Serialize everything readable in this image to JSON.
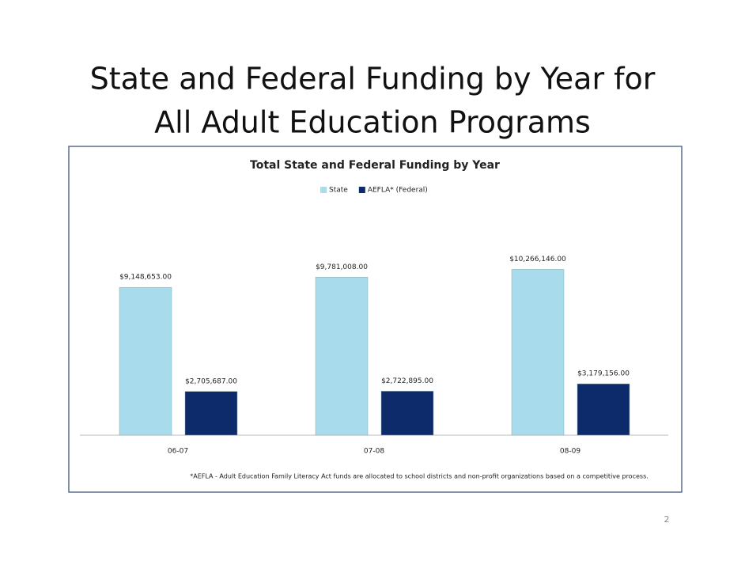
{
  "slide": {
    "title_lines": [
      "State and Federal Funding by Year for",
      "All Adult Education Programs"
    ],
    "page_number": 2
  },
  "chart_data": {
    "type": "bar",
    "title": "Total State and Federal Funding by Year",
    "categories": [
      "06-07",
      "07-08",
      "08-09"
    ],
    "series": [
      {
        "name": "State",
        "color": "#a8dcec",
        "values": [
          9148653,
          9781008,
          10266146
        ],
        "value_labels": [
          "$9,148,653.00",
          "$9,781,008.00",
          "$10,266,146.00"
        ]
      },
      {
        "name": "AEFLA* (Federal)",
        "color": "#0d2a6a",
        "values": [
          2705687,
          2722895,
          3179156
        ],
        "value_labels": [
          "$2,705,687.00",
          "$2,722,895.00",
          "$3,179,156.00"
        ]
      }
    ],
    "ylim": [
      0,
      12000000
    ],
    "legend": "top",
    "footnote": "*AEFLA - Adult Education Family Literacy Act funds are allocated to  school districts and non-profit organizations based on a competitive process."
  }
}
